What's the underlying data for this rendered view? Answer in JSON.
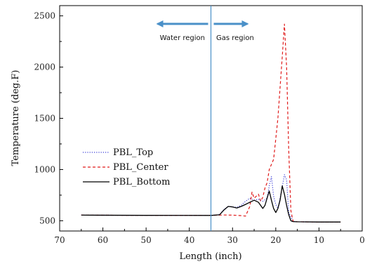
{
  "chart_data": {
    "type": "line",
    "xlabel": "Length (inch)",
    "ylabel": "Temperature (deg.F)",
    "xlim": [
      70,
      0
    ],
    "ylim": [
      400,
      2600
    ],
    "x_ticks": [
      "70",
      "60",
      "50",
      "40",
      "30",
      "20",
      "10",
      "0"
    ],
    "y_ticks": [
      "500",
      "1000",
      "1500",
      "2000",
      "2500"
    ],
    "x_tick_values": [
      70,
      60,
      50,
      40,
      30,
      20,
      10,
      0
    ],
    "y_tick_values": [
      500,
      1000,
      1500,
      2000,
      2500
    ],
    "legend_position": "center-left",
    "divider_x": 35,
    "annotations": {
      "left_region": "Water region",
      "right_region": "Gas region"
    },
    "series": [
      {
        "name": "PBL_Top",
        "style": "dotted",
        "color": "#3b3fd8",
        "x": [
          65,
          50,
          35,
          33,
          32,
          31,
          30,
          29,
          28,
          27,
          26,
          25,
          24,
          23,
          22,
          21.5,
          21,
          20.5,
          20,
          19.5,
          19,
          18.5,
          18,
          17.5,
          17,
          16,
          15,
          10,
          5
        ],
        "y": [
          555,
          553,
          552,
          560,
          610,
          640,
          635,
          630,
          650,
          690,
          720,
          700,
          710,
          690,
          720,
          840,
          930,
          740,
          660,
          620,
          720,
          830,
          950,
          900,
          580,
          495,
          490,
          488,
          488
        ]
      },
      {
        "name": "PBL_Center",
        "style": "dashed",
        "color": "#e01b1b",
        "x": [
          65,
          50,
          35,
          32,
          30,
          28,
          27,
          26,
          25.5,
          25,
          24,
          23.5,
          23,
          22.5,
          22,
          21.5,
          21,
          20.5,
          20,
          19.5,
          19,
          18.5,
          18,
          17.5,
          17,
          16.5,
          16,
          15,
          10,
          5
        ],
        "y": [
          555,
          553,
          552,
          556,
          555,
          550,
          545,
          640,
          780,
          720,
          760,
          690,
          730,
          820,
          870,
          1000,
          1050,
          1100,
          1300,
          1500,
          1800,
          2100,
          2420,
          2000,
          1200,
          600,
          495,
          490,
          488,
          488
        ]
      },
      {
        "name": "PBL_Bottom",
        "style": "solid",
        "color": "#000000",
        "x": [
          65,
          50,
          35,
          33,
          32,
          31,
          30,
          29,
          28,
          27,
          26,
          25,
          24,
          23,
          22.5,
          22,
          21.5,
          21,
          20.5,
          20,
          19.5,
          19,
          18.5,
          18,
          17.5,
          17,
          16.5,
          16,
          15,
          10,
          5
        ],
        "y": [
          555,
          553,
          552,
          558,
          605,
          640,
          635,
          625,
          640,
          660,
          680,
          700,
          680,
          620,
          650,
          720,
          790,
          700,
          620,
          580,
          620,
          700,
          840,
          760,
          650,
          560,
          500,
          492,
          490,
          488,
          488
        ]
      }
    ]
  }
}
